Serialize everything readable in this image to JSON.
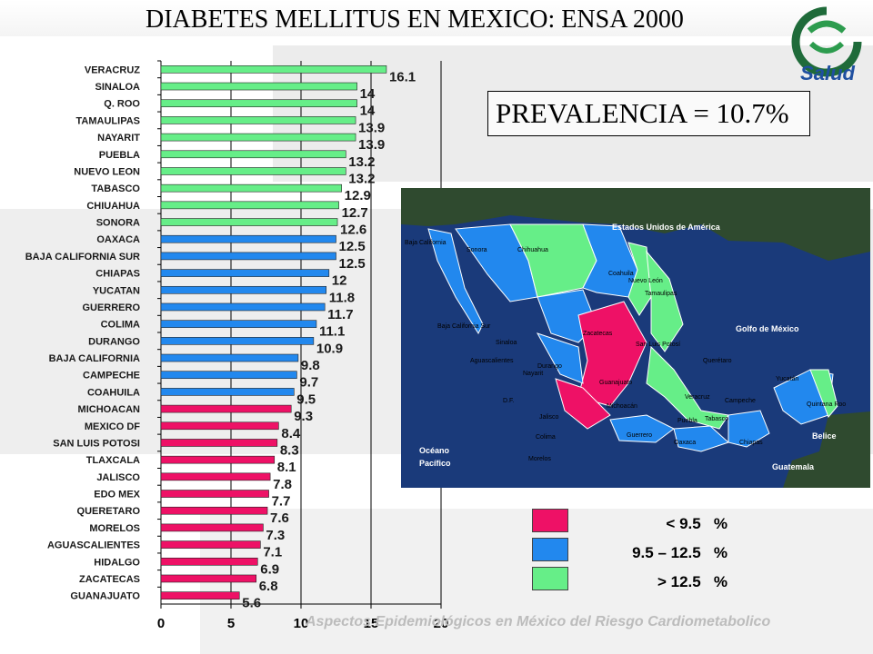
{
  "colors": {
    "low": "#ee1166",
    "mid": "#2288ee",
    "high": "#66ee88"
  },
  "chart_data": {
    "type": "bar",
    "orientation": "horizontal",
    "title": "DIABETES MELLITUS EN MEXICO: ENSA 2000",
    "categories": [
      "VERACRUZ",
      "SINALOA",
      "Q. ROO",
      "TAMAULIPAS",
      "NAYARIT",
      "PUEBLA",
      "NUEVO LEON",
      "TABASCO",
      "CHIUAHUA",
      "SONORA",
      "OAXACA",
      "BAJA CALIFORNIA SUR",
      "CHIAPAS",
      "YUCATAN",
      "GUERRERO",
      "COLIMA",
      "DURANGO",
      "BAJA CALIFORNIA",
      "CAMPECHE",
      "COAHUILA",
      "MICHOACAN",
      "MEXICO DF",
      "SAN LUIS POTOSI",
      "TLAXCALA",
      "JALISCO",
      "EDO MEX",
      "QUERETARO",
      "MORELOS",
      "AGUASCALIENTES",
      "HIDALGO",
      "ZACATECAS",
      "GUANAJUATO"
    ],
    "values": [
      16.1,
      14,
      14,
      13.9,
      13.9,
      13.2,
      13.2,
      12.9,
      12.7,
      12.6,
      12.5,
      12.5,
      12,
      11.8,
      11.7,
      11.1,
      10.9,
      9.8,
      9.7,
      9.5,
      9.3,
      8.4,
      8.3,
      8.1,
      7.8,
      7.7,
      7.6,
      7.3,
      7.1,
      6.9,
      6.8,
      5.6
    ],
    "xlim": [
      0,
      20
    ],
    "xticks": [
      0,
      5,
      10,
      15,
      20
    ],
    "grid": true,
    "legend": [
      {
        "label": "< 9.5   %",
        "color": "#ee1166"
      },
      {
        "label": "9.5 – 12.5   %",
        "color": "#2288ee"
      },
      {
        "label": "> 12.5   %",
        "color": "#66ee88"
      }
    ]
  },
  "prevalence": "PREVALENCIA = 10.7%",
  "logo_text": "Salud",
  "footer": "Aspectos Epidemiológicos en México del Riesgo Cardiometabolico",
  "map": {
    "country_label": "Estados Unidos de América",
    "gulf_label": "Golfo de México",
    "ocean_label_1": "Océano",
    "ocean_label_2": "Pacífico",
    "belize_label": "Belice",
    "guatemala_label": "Guatemala",
    "states": [
      "Baja California",
      "Sonora",
      "Chihuahua",
      "Coahuila",
      "Nuevo León",
      "Tamaulipas",
      "Baja California Sur",
      "Sinaloa",
      "Durango",
      "Zacatecas",
      "San Luis Potosí",
      "Aguascalientes",
      "Nayarit",
      "Querétaro",
      "Guanajuato",
      "Yucatán",
      "Quintana Roo",
      "D.F.",
      "Jalisco",
      "Veracruz",
      "Campeche",
      "Colima",
      "Michoacán",
      "Puebla",
      "Tabasco",
      "Morelos",
      "Guerrero",
      "Oaxaca",
      "Chiapas"
    ]
  }
}
